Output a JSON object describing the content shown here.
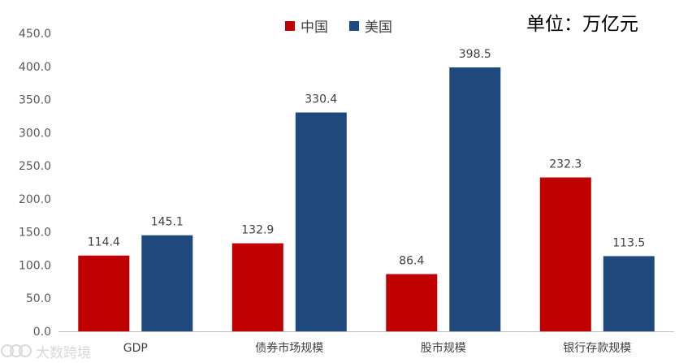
{
  "unit_note": "单位：万亿元",
  "watermark_text": "大数跨境",
  "chart_data": {
    "type": "bar",
    "categories": [
      "GDP",
      "债券市场规模",
      "股市规模",
      "银行存款规模"
    ],
    "series": [
      {
        "name": "中国",
        "color": "#C00000",
        "values": [
          114.4,
          132.9,
          86.4,
          232.3
        ]
      },
      {
        "name": "美国",
        "color": "#1F497D",
        "values": [
          145.1,
          330.4,
          398.5,
          113.5
        ]
      }
    ],
    "ylim": [
      0,
      450
    ],
    "yticks": [
      "0.0",
      "50.0",
      "100.0",
      "150.0",
      "200.0",
      "250.0",
      "300.0",
      "350.0",
      "400.0",
      "450.0"
    ],
    "legend_position": "top-center",
    "grid": false,
    "data_labels": true
  }
}
